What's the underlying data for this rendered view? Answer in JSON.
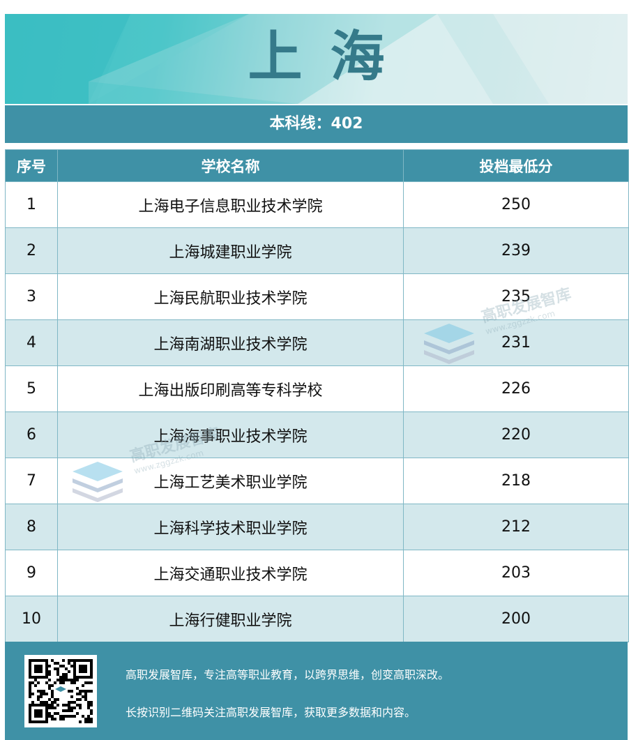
{
  "banner": {
    "title": "上海"
  },
  "cutoff": {
    "label": "本科线：402"
  },
  "table": {
    "headers": [
      "序号",
      "学校名称",
      "投档最低分"
    ],
    "rows": [
      {
        "no": "1",
        "school": "上海电子信息职业技术学院",
        "score": "250"
      },
      {
        "no": "2",
        "school": "上海城建职业学院",
        "score": "239"
      },
      {
        "no": "3",
        "school": "上海民航职业技术学院",
        "score": "235"
      },
      {
        "no": "4",
        "school": "上海南湖职业技术学院",
        "score": "231"
      },
      {
        "no": "5",
        "school": "上海出版印刷高等专科学校",
        "score": "226"
      },
      {
        "no": "6",
        "school": "上海海事职业技术学院",
        "score": "220"
      },
      {
        "no": "7",
        "school": "上海工艺美术职业学院",
        "score": "218"
      },
      {
        "no": "8",
        "school": "上海科学技术职业学院",
        "score": "212"
      },
      {
        "no": "9",
        "school": "上海交通职业技术学院",
        "score": "203"
      },
      {
        "no": "10",
        "school": "上海行健职业学院",
        "score": "200"
      }
    ]
  },
  "watermark": {
    "name": "高职发展智库",
    "url": "www.zggzzk.com"
  },
  "footer": {
    "line1": "高职发展智库，专注高等职业教育，以跨界思维，创变高职深改。",
    "line2": "长按识别二维码关注高职发展智库，获取更多数据和内容。"
  },
  "colors": {
    "primary": "#3f91a6",
    "title": "#357a8a",
    "alt_row": "#d3e8ec"
  }
}
